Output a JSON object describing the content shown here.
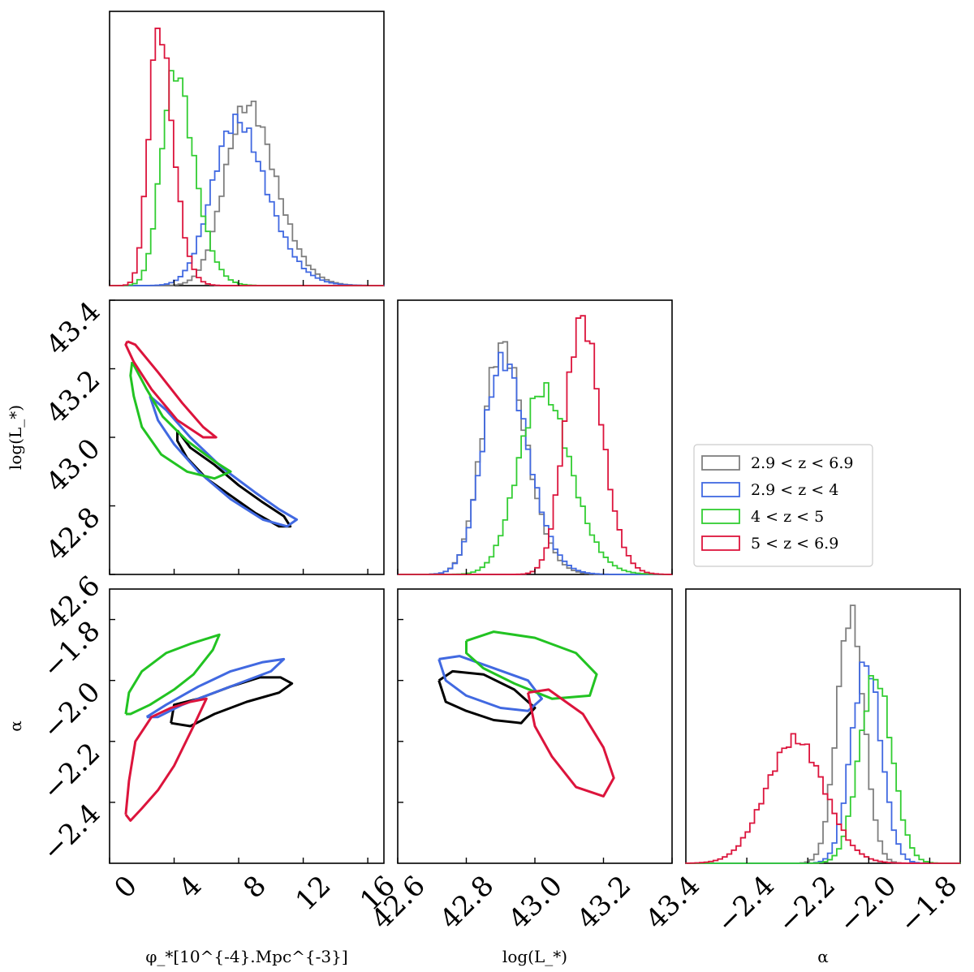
{
  "chart_data": {
    "type": "corner",
    "parameters": [
      {
        "key": "phi",
        "label": "φ_*[10^{-4}.Mpc^{-3}]",
        "range": [
          0,
          17
        ],
        "ticks": [
          0,
          4,
          8,
          12,
          16
        ],
        "tick_labels": [
          "0",
          "4",
          "8",
          "12",
          "16"
        ]
      },
      {
        "key": "logL",
        "label": "log(L_*)",
        "range": [
          42.6,
          43.4
        ],
        "ticks": [
          42.6,
          42.8,
          43.0,
          43.2,
          43.4
        ],
        "tick_labels": [
          "42.6",
          "42.8",
          "43.0",
          "43.2",
          "43.4"
        ]
      },
      {
        "key": "alpha",
        "label": "α",
        "range": [
          -2.6,
          -1.7
        ],
        "ticks": [
          -2.4,
          -2.2,
          -2.0,
          -1.8
        ],
        "tick_labels": [
          "−2.4",
          "−2.2",
          "−2.0",
          "−1.8"
        ]
      }
    ],
    "y_label_texts": {
      "logL": "log(L_*)",
      "alpha": "α"
    },
    "series": [
      {
        "name": "2.9 < z < 6.9",
        "color": "#7f7f7f",
        "contour_color": "#000000",
        "phi": {
          "mean": 7.4,
          "sd": 2.2,
          "skew": 1.6,
          "peak": 0.66
        },
        "logL": {
          "mean": 42.86,
          "sd": 0.085,
          "skew": 1.4,
          "peak": 0.83
        },
        "alpha": {
          "mean": -2.07,
          "sd": 0.045,
          "skew": 0.3,
          "peak": 0.9
        }
      },
      {
        "name": "2.9 < z < 4",
        "color": "#4169e1",
        "contour_color": "#4169e1",
        "phi": {
          "mean": 6.6,
          "sd": 2.4,
          "skew": 1.7,
          "peak": 0.6
        },
        "logL": {
          "mean": 42.86,
          "sd": 0.09,
          "skew": 1.5,
          "peak": 0.78
        },
        "alpha": {
          "mean": -2.02,
          "sd": 0.05,
          "skew": 0.3,
          "peak": 0.73
        }
      },
      {
        "name": "4 < z < 5",
        "color": "#32cd32",
        "contour_color": "#22c322",
        "phi": {
          "mean": 3.3,
          "sd": 1.5,
          "skew": 1.9,
          "peak": 0.78
        },
        "logL": {
          "mean": 42.97,
          "sd": 0.1,
          "skew": 1.3,
          "peak": 0.67
        },
        "alpha": {
          "mean": -1.99,
          "sd": 0.055,
          "skew": 0.3,
          "peak": 0.68
        }
      },
      {
        "name": "5 < z < 6.9",
        "color": "#dc143c",
        "contour_color": "#dc143c",
        "phi": {
          "mean": 2.5,
          "sd": 1.1,
          "skew": 1.9,
          "peak": 0.93
        },
        "logL": {
          "mean": 43.1,
          "sd": 0.07,
          "skew": 1.3,
          "peak": 0.93
        },
        "alpha": {
          "mean": -2.27,
          "sd": 0.1,
          "skew": 0.4,
          "peak": 0.45
        }
      }
    ],
    "contours": {
      "phi_logL": [
        {
          "series": "2.9 < z < 6.9",
          "points": [
            [
              4.2,
              43.02
            ],
            [
              5.0,
              42.97
            ],
            [
              6.5,
              42.92
            ],
            [
              8.0,
              42.86
            ],
            [
              9.5,
              42.81
            ],
            [
              10.8,
              42.77
            ],
            [
              11.2,
              42.74
            ],
            [
              10.5,
              42.74
            ],
            [
              9.0,
              42.78
            ],
            [
              7.5,
              42.83
            ],
            [
              6.0,
              42.88
            ],
            [
              4.8,
              42.94
            ],
            [
              4.2,
              42.99
            ],
            [
              4.2,
              43.02
            ]
          ]
        },
        {
          "series": "2.9 < z < 4",
          "points": [
            [
              2.5,
              43.12
            ],
            [
              3.5,
              43.08
            ],
            [
              5.0,
              43.0
            ],
            [
              7.0,
              42.91
            ],
            [
              9.0,
              42.84
            ],
            [
              10.5,
              42.79
            ],
            [
              11.6,
              42.76
            ],
            [
              11.0,
              42.74
            ],
            [
              9.5,
              42.76
            ],
            [
              7.5,
              42.82
            ],
            [
              5.5,
              42.9
            ],
            [
              4.0,
              42.98
            ],
            [
              3.0,
              43.05
            ],
            [
              2.5,
              43.12
            ]
          ]
        },
        {
          "series": "4 < z < 5",
          "points": [
            [
              1.4,
              43.22
            ],
            [
              2.3,
              43.14
            ],
            [
              3.3,
              43.06
            ],
            [
              4.8,
              42.99
            ],
            [
              6.5,
              42.93
            ],
            [
              7.5,
              42.9
            ],
            [
              6.5,
              42.88
            ],
            [
              4.8,
              42.9
            ],
            [
              3.2,
              42.95
            ],
            [
              2.0,
              43.03
            ],
            [
              1.5,
              43.12
            ],
            [
              1.3,
              43.18
            ],
            [
              1.4,
              43.22
            ]
          ]
        },
        {
          "series": "5 < z < 6.9",
          "points": [
            [
              1.1,
              43.28
            ],
            [
              1.6,
              43.27
            ],
            [
              3.0,
              43.19
            ],
            [
              4.5,
              43.1
            ],
            [
              5.8,
              43.03
            ],
            [
              6.6,
              43.0
            ],
            [
              5.8,
              43.0
            ],
            [
              4.2,
              43.05
            ],
            [
              2.6,
              43.14
            ],
            [
              1.5,
              43.22
            ],
            [
              1.0,
              43.27
            ],
            [
              1.1,
              43.28
            ]
          ]
        }
      ],
      "phi_alpha": [
        {
          "series": "2.9 < z < 6.9",
          "points": [
            [
              3.8,
              -2.14
            ],
            [
              4.0,
              -2.08
            ],
            [
              5.5,
              -2.06
            ],
            [
              7.5,
              -2.02
            ],
            [
              9.3,
              -1.99
            ],
            [
              10.6,
              -1.99
            ],
            [
              11.3,
              -2.01
            ],
            [
              10.5,
              -2.04
            ],
            [
              8.5,
              -2.07
            ],
            [
              6.5,
              -2.11
            ],
            [
              5.0,
              -2.15
            ],
            [
              3.8,
              -2.14
            ]
          ]
        },
        {
          "series": "2.9 < z < 4",
          "points": [
            [
              2.3,
              -2.12
            ],
            [
              3.5,
              -2.08
            ],
            [
              5.5,
              -2.02
            ],
            [
              7.5,
              -1.97
            ],
            [
              9.5,
              -1.94
            ],
            [
              10.8,
              -1.93
            ],
            [
              10.0,
              -1.97
            ],
            [
              8.0,
              -2.01
            ],
            [
              6.0,
              -2.05
            ],
            [
              4.5,
              -2.08
            ],
            [
              3.0,
              -2.12
            ],
            [
              2.3,
              -2.12
            ]
          ]
        },
        {
          "series": "4 < z < 5",
          "points": [
            [
              1.0,
              -2.11
            ],
            [
              1.2,
              -2.04
            ],
            [
              2.0,
              -1.97
            ],
            [
              3.5,
              -1.91
            ],
            [
              5.0,
              -1.88
            ],
            [
              6.8,
              -1.85
            ],
            [
              6.4,
              -1.9
            ],
            [
              5.2,
              -1.98
            ],
            [
              4.0,
              -2.03
            ],
            [
              2.5,
              -2.08
            ],
            [
              1.3,
              -2.11
            ],
            [
              1.0,
              -2.11
            ]
          ]
        },
        {
          "series": "5 < z < 6.9",
          "points": [
            [
              1.0,
              -2.44
            ],
            [
              1.2,
              -2.33
            ],
            [
              1.6,
              -2.2
            ],
            [
              2.6,
              -2.12
            ],
            [
              3.8,
              -2.09
            ],
            [
              5.0,
              -2.07
            ],
            [
              6.0,
              -2.06
            ],
            [
              5.2,
              -2.15
            ],
            [
              4.0,
              -2.28
            ],
            [
              3.0,
              -2.36
            ],
            [
              2.0,
              -2.42
            ],
            [
              1.3,
              -2.46
            ],
            [
              1.0,
              -2.44
            ]
          ]
        }
      ],
      "logL_alpha": [
        {
          "series": "2.9 < z < 6.9",
          "points": [
            [
              42.72,
              -2.0
            ],
            [
              42.76,
              -1.97
            ],
            [
              42.85,
              -1.98
            ],
            [
              42.94,
              -2.03
            ],
            [
              43.0,
              -2.09
            ],
            [
              42.96,
              -2.14
            ],
            [
              42.88,
              -2.13
            ],
            [
              42.8,
              -2.1
            ],
            [
              42.74,
              -2.07
            ],
            [
              42.72,
              -2.0
            ]
          ]
        },
        {
          "series": "2.9 < z < 4",
          "points": [
            [
              42.72,
              -1.93
            ],
            [
              42.78,
              -1.92
            ],
            [
              42.88,
              -1.96
            ],
            [
              42.98,
              -2.0
            ],
            [
              43.02,
              -2.06
            ],
            [
              42.98,
              -2.1
            ],
            [
              42.9,
              -2.09
            ],
            [
              42.8,
              -2.05
            ],
            [
              42.74,
              -2.0
            ],
            [
              42.72,
              -1.93
            ]
          ]
        },
        {
          "series": "4 < z < 5",
          "points": [
            [
              42.8,
              -1.87
            ],
            [
              42.88,
              -1.84
            ],
            [
              43.0,
              -1.86
            ],
            [
              43.12,
              -1.91
            ],
            [
              43.18,
              -1.98
            ],
            [
              43.16,
              -2.05
            ],
            [
              43.05,
              -2.06
            ],
            [
              42.94,
              -2.01
            ],
            [
              42.85,
              -1.96
            ],
            [
              42.8,
              -1.91
            ],
            [
              42.8,
              -1.87
            ]
          ]
        },
        {
          "series": "5 < z < 6.9",
          "points": [
            [
              42.98,
              -2.04
            ],
            [
              43.04,
              -2.03
            ],
            [
              43.14,
              -2.11
            ],
            [
              43.2,
              -2.22
            ],
            [
              43.23,
              -2.32
            ],
            [
              43.2,
              -2.38
            ],
            [
              43.12,
              -2.35
            ],
            [
              43.05,
              -2.25
            ],
            [
              43.0,
              -2.15
            ],
            [
              42.98,
              -2.04
            ]
          ]
        }
      ]
    },
    "legend_placement": "right-middle",
    "grid": false
  }
}
